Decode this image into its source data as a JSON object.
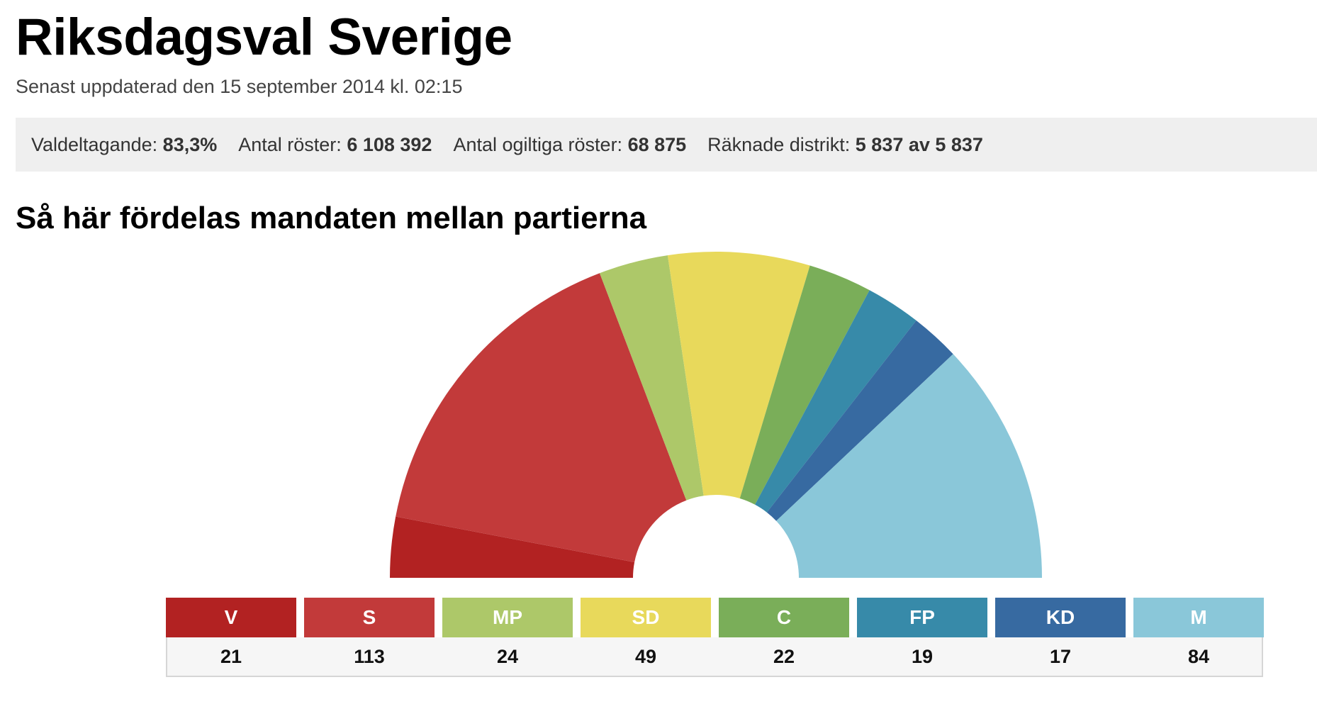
{
  "header": {
    "title": "Riksdagsval Sverige",
    "updated": "Senast uppdaterad den 15 september 2014 kl. 02:15"
  },
  "stats": [
    {
      "label": "Valdeltagande:",
      "value": "83,3%"
    },
    {
      "label": "Antal röster:",
      "value": "6 108 392"
    },
    {
      "label": "Antal ogiltiga röster:",
      "value": "68 875"
    },
    {
      "label": "Räknade distrikt:",
      "value": "5 837 av 5 837"
    }
  ],
  "section_title": "Så här fördelas mandaten mellan partierna",
  "chart_data": {
    "type": "pie",
    "subtype": "half-donut",
    "categories": [
      "V",
      "S",
      "MP",
      "SD",
      "C",
      "FP",
      "KD",
      "M"
    ],
    "values": [
      21,
      113,
      24,
      49,
      22,
      19,
      17,
      84
    ],
    "colors": [
      "#b22222",
      "#c23a3a",
      "#adc869",
      "#e8d95b",
      "#7aae59",
      "#378aa9",
      "#376aa1",
      "#8ac7d9"
    ],
    "legend_position": "bottom"
  }
}
